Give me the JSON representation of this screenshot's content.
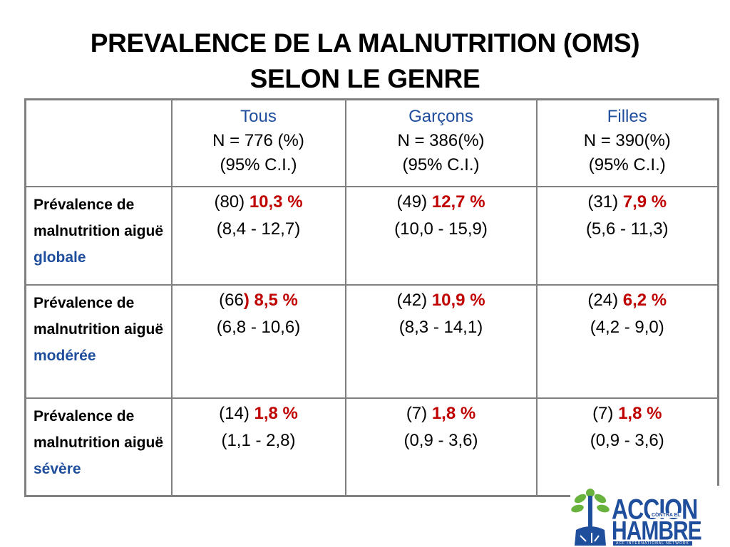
{
  "title": {
    "line1": "PREVALENCE DE LA MALNUTRITION (OMS)",
    "line2": "SELON LE GENRE"
  },
  "columns": [
    {
      "group": "Tous",
      "n": "N = 776 (%)",
      "ci": "(95% C.I.)"
    },
    {
      "group": "Garçons",
      "n": "N = 386(%)",
      "ci": "(95% C.I.)"
    },
    {
      "group": "Filles",
      "n": "N = 390(%)",
      "ci": "(95% C.I.)"
    }
  ],
  "rows": [
    {
      "label_prefix": "Prévalence de malnutrition aiguë ",
      "label_highlight": "globale",
      "cells": [
        {
          "count": "(80) ",
          "pct": "10,3 %",
          "ci": "(8,4 - 12,7)"
        },
        {
          "count": "(49) ",
          "pct": "12,7 %",
          "ci": "(10,0 - 15,9)"
        },
        {
          "count": "(31) ",
          "pct": "7,9 %",
          "ci": "(5,6 - 11,3)"
        }
      ]
    },
    {
      "label_prefix": "Prévalence de malnutrition aiguë ",
      "label_highlight": "modérée",
      "cells": [
        {
          "count": "(66",
          "count_close": ") ",
          "pct": "8,5 %",
          "ci": "(6,8 - 10,6)"
        },
        {
          "count": "(42) ",
          "pct": "10,9 %",
          "ci": "(8,3 - 14,1)"
        },
        {
          "count": "(24) ",
          "pct": "6,2 %",
          "ci": "(4,2 - 9,0)"
        }
      ]
    },
    {
      "label_prefix": "Prévalence de malnutrition aiguë ",
      "label_highlight": "sévère",
      "cells": [
        {
          "count": "(14) ",
          "pct": "1,8 %",
          "ci": "(1,1 - 2,8)"
        },
        {
          "count": "(7) ",
          "pct": "1,8 %",
          "ci": "(0,9 - 3,6)"
        },
        {
          "count": "(7) ",
          "pct": "1,8 %",
          "ci": "(0,9 - 3,6)"
        }
      ]
    }
  ],
  "logo": {
    "line1": "ACCION",
    "small": "CONTRA EL",
    "line2": "HAMBRE",
    "network": "ACF INTERNATIONAL NETWORK",
    "colors": {
      "blue": "#1f4e9c",
      "green": "#6ab23e"
    }
  },
  "colors": {
    "accent_blue": "#1f4e9c",
    "value_red": "#c00000",
    "border_gray": "#808080"
  }
}
